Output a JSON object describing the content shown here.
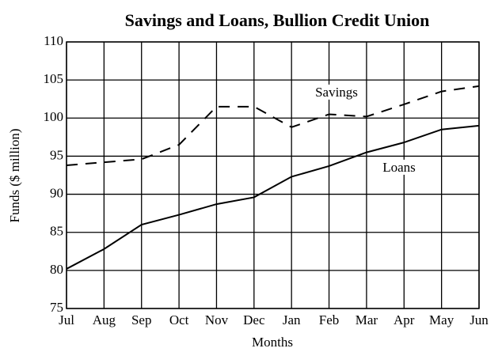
{
  "chart_data": {
    "type": "line",
    "title": "Savings and Loans, Bullion Credit Union",
    "x_label": "Months",
    "y_label": "Funds ($ million)",
    "categories": [
      "Jul",
      "Aug",
      "Sep",
      "Oct",
      "Nov",
      "Dec",
      "Jan",
      "Feb",
      "Mar",
      "Apr",
      "May",
      "Jun"
    ],
    "series": [
      {
        "name": "Savings",
        "color": "#000000",
        "dashed": true,
        "values": [
          93.8,
          94.2,
          94.6,
          96.5,
          101.5,
          101.5,
          98.8,
          100.5,
          100.2,
          101.8,
          103.5,
          104.2
        ]
      },
      {
        "name": "Loans",
        "color": "#000000",
        "dashed": false,
        "values": [
          80.2,
          82.8,
          86,
          87.3,
          88.7,
          89.6,
          92.3,
          93.7,
          95.5,
          96.8,
          98.5,
          99
        ]
      }
    ],
    "ylim": [
      75,
      110
    ],
    "yticks": [
      75,
      80,
      85,
      90,
      95,
      100,
      105,
      110
    ],
    "grid": true
  }
}
